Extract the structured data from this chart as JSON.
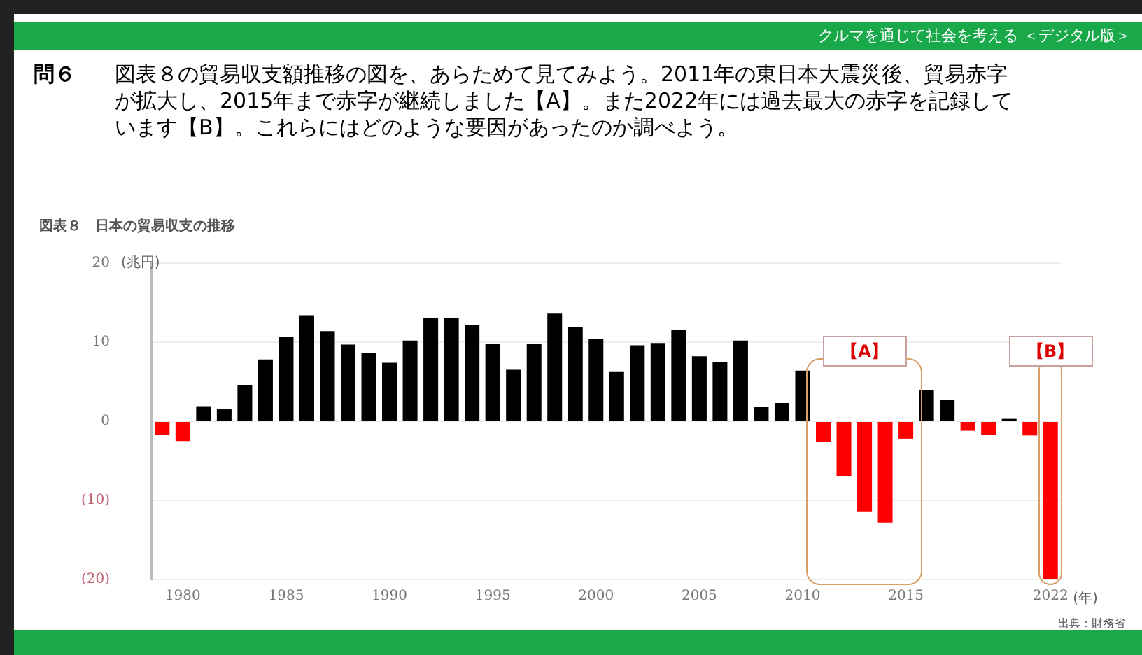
{
  "chart_data": {
    "type": "bar",
    "title": "図表８　日本の貿易収支の推移",
    "ylabel": "(兆円)",
    "xlabel": "(年)",
    "annotations": [
      "クルマを通じて社会を考える ＜デジタル版＞",
      "問６",
      "図表８の貿易収支額推移の図を、あらためて見てみよう。2011年の東日本大震災後、貿易赤字が拡大し、2015年まで赤字が継続しました【A】。また2022年には過去最大の赤字を記録しています【B】。これらにはどのような要因があったのか調べよう。",
      "出典：財務省",
      "【A】",
      "【B】"
    ],
    "categories": [
      null,
      "1980",
      null,
      null,
      null,
      null,
      "1985",
      null,
      null,
      null,
      null,
      "1990",
      null,
      null,
      null,
      null,
      "1995",
      null,
      null,
      null,
      null,
      "2000",
      null,
      null,
      null,
      null,
      "2005",
      null,
      null,
      null,
      null,
      "2010",
      null,
      null,
      null,
      null,
      "2015",
      null,
      null,
      null,
      null,
      null,
      null,
      "2022"
    ],
    "values": [
      -1.7,
      -2.5,
      1.9,
      1.5,
      4.6,
      7.8,
      10.7,
      13.4,
      11.4,
      9.7,
      8.6,
      7.4,
      10.2,
      13.1,
      13.1,
      12.2,
      9.8,
      6.5,
      9.8,
      13.7,
      11.9,
      10.4,
      6.3,
      9.6,
      9.9,
      11.5,
      8.2,
      7.5,
      10.2,
      1.8,
      2.3,
      6.4,
      -2.6,
      -6.9,
      -11.4,
      -12.8,
      -2.2,
      3.9,
      2.7,
      -1.2,
      -1.7,
      0.3,
      -1.8,
      -20.0
    ],
    "colors": [
      "#ff0000",
      "#ff0000",
      "#000000",
      "#000000",
      "#000000",
      "#000000",
      "#000000",
      "#000000",
      "#000000",
      "#000000",
      "#000000",
      "#000000",
      "#000000",
      "#000000",
      "#000000",
      "#000000",
      "#000000",
      "#000000",
      "#000000",
      "#000000",
      "#000000",
      "#000000",
      "#000000",
      "#000000",
      "#000000",
      "#000000",
      "#000000",
      "#000000",
      "#000000",
      "#000000",
      "#000000",
      "#000000",
      "#ff0000",
      "#ff0000",
      "#ff0000",
      "#ff0000",
      "#ff0000",
      "#000000",
      "#000000",
      "#ff0000",
      "#ff0000",
      "#000000",
      "#ff0000",
      "#ff0000"
    ],
    "ylim": [
      -20,
      20
    ],
    "yticks": [
      20,
      10,
      0,
      {
        "value": -10,
        "label": "(10)"
      },
      {
        "value": -20,
        "label": "(20)"
      }
    ],
    "grid": "y",
    "legend": false
  }
}
